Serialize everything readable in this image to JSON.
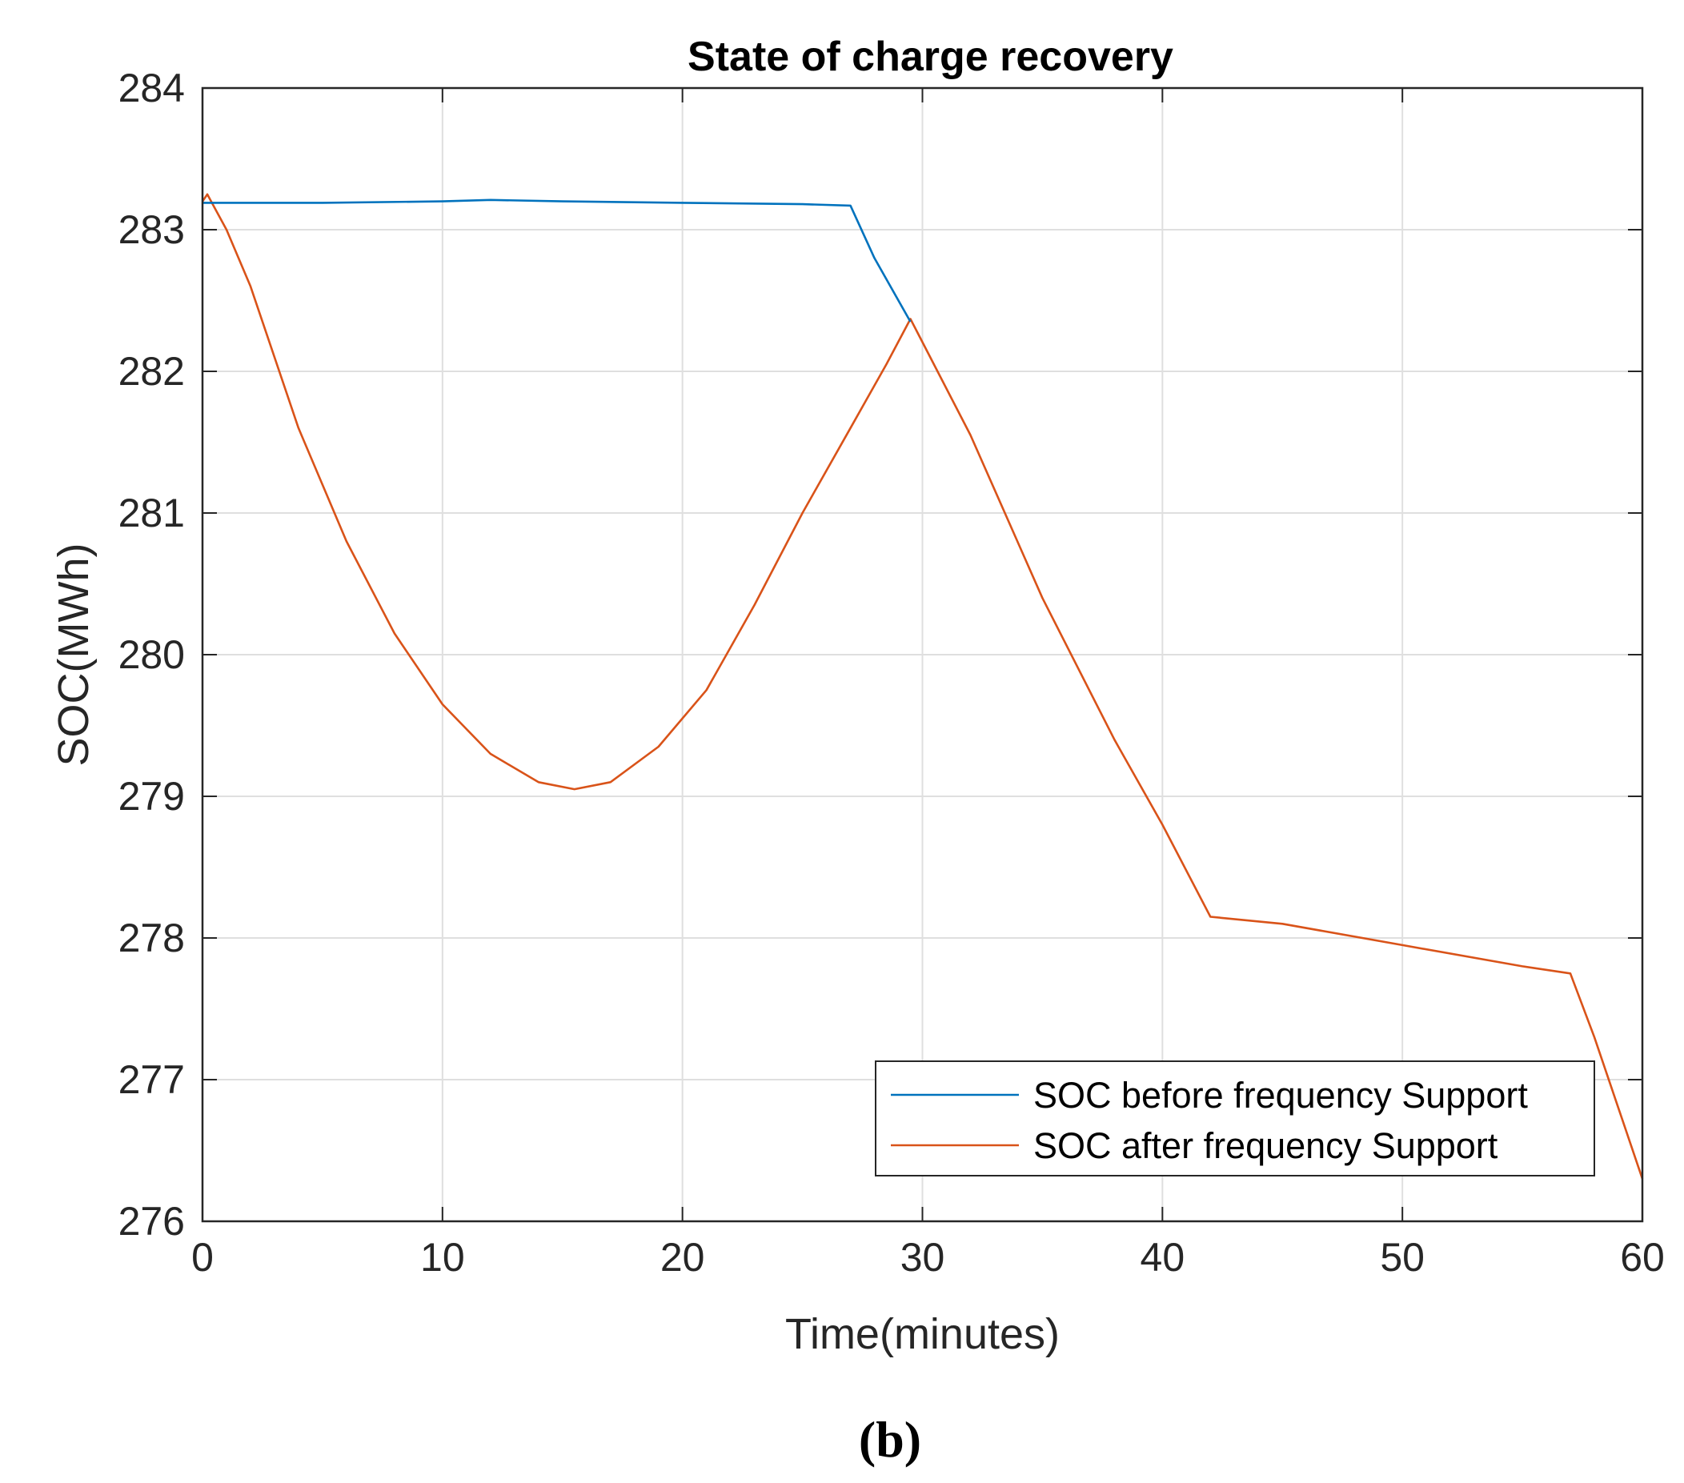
{
  "chart_data": {
    "type": "line",
    "title": "State of charge recovery",
    "xlabel": "Time(minutes)",
    "ylabel": "SOC(MWh)",
    "xlim": [
      0,
      60
    ],
    "ylim": [
      276,
      284
    ],
    "xticks": [
      0,
      10,
      20,
      30,
      40,
      50,
      60
    ],
    "yticks": [
      276,
      277,
      278,
      279,
      280,
      281,
      282,
      283,
      284
    ],
    "xtick_labels": [
      "0",
      "10",
      "20",
      "30",
      "40",
      "50",
      "60"
    ],
    "ytick_labels": [
      "276",
      "277",
      "278",
      "279",
      "280",
      "281",
      "282",
      "283",
      "284"
    ],
    "grid": true,
    "legend_position": "bottom-right",
    "series": [
      {
        "name": "SOC before frequency Support",
        "color": "#0072BD",
        "x": [
          0,
          5,
          10,
          12,
          15,
          20,
          25,
          27,
          28,
          29.5
        ],
        "y": [
          283.19,
          283.19,
          283.2,
          283.21,
          283.2,
          283.19,
          283.18,
          283.17,
          282.8,
          282.35
        ]
      },
      {
        "name": "SOC after frequency Support",
        "color": "#D95319",
        "x": [
          0,
          0.2,
          1,
          2,
          4,
          6,
          8,
          10,
          12,
          14,
          15.5,
          17,
          19,
          21,
          23,
          25,
          27,
          28.5,
          29.5,
          32,
          35,
          38,
          40,
          42,
          45,
          50,
          55,
          57,
          58,
          59,
          60
        ],
        "y": [
          283.2,
          283.25,
          283.0,
          282.6,
          281.6,
          280.8,
          280.15,
          279.65,
          279.3,
          279.1,
          279.05,
          279.1,
          279.35,
          279.75,
          280.35,
          281.0,
          281.6,
          282.05,
          282.37,
          281.55,
          280.4,
          279.4,
          278.8,
          278.15,
          278.1,
          277.95,
          277.8,
          277.75,
          277.3,
          276.8,
          276.3
        ]
      }
    ]
  },
  "caption": "(b)"
}
